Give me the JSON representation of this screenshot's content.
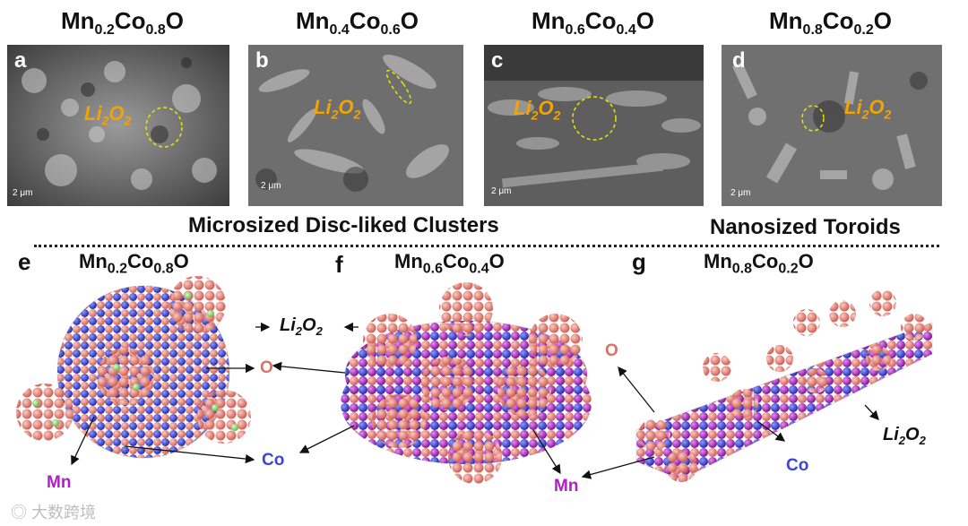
{
  "top_titles": [
    {
      "el": "Mn",
      "s1": "0.2",
      "el2": "Co",
      "s2": "0.8",
      "el3": "O"
    },
    {
      "el": "Mn",
      "s1": "0.4",
      "el2": "Co",
      "s2": "0.6",
      "el3": "O"
    },
    {
      "el": "Mn",
      "s1": "0.6",
      "el2": "Co",
      "s2": "0.4",
      "el3": "O"
    },
    {
      "el": "Mn",
      "s1": "0.8",
      "el2": "Co",
      "s2": "0.2",
      "el3": "O"
    }
  ],
  "panels": [
    {
      "letter": "a",
      "li": "Li",
      "sub": "2",
      "o": "O",
      "sub2": "2",
      "scale": "2 μm"
    },
    {
      "letter": "b",
      "li": "Li",
      "sub": "2",
      "o": "O",
      "sub2": "2",
      "scale": "2 μm"
    },
    {
      "letter": "c",
      "li": "Li",
      "sub": "2",
      "o": "O",
      "sub2": "2",
      "scale": "2 μm"
    },
    {
      "letter": "d",
      "li": "Li",
      "sub": "2",
      "o": "O",
      "sub2": "2",
      "scale": "2 μm"
    }
  ],
  "section_left": "Microsized Disc-liked Clusters",
  "section_right": "Nanosized Toroids",
  "models": [
    {
      "letter": "e",
      "el": "Mn",
      "s1": "0.2",
      "el2": "Co",
      "s2": "0.8",
      "el3": "O"
    },
    {
      "letter": "f",
      "el": "Mn",
      "s1": "0.6",
      "el2": "Co",
      "s2": "0.4",
      "el3": "O"
    },
    {
      "letter": "g",
      "el": "Mn",
      "s1": "0.8",
      "el2": "Co",
      "s2": "0.2",
      "el3": "O"
    }
  ],
  "labels": {
    "li": "Li",
    "sub": "2",
    "o": "O",
    "sub2": "2",
    "O": "O",
    "Co": "Co",
    "Mn": "Mn",
    "colors": {
      "O": "#d9736a",
      "Co": "#3b46d6",
      "Mn": "#b01fc4",
      "li_orange": "#f4a300"
    }
  },
  "watermark": "大数跨境"
}
